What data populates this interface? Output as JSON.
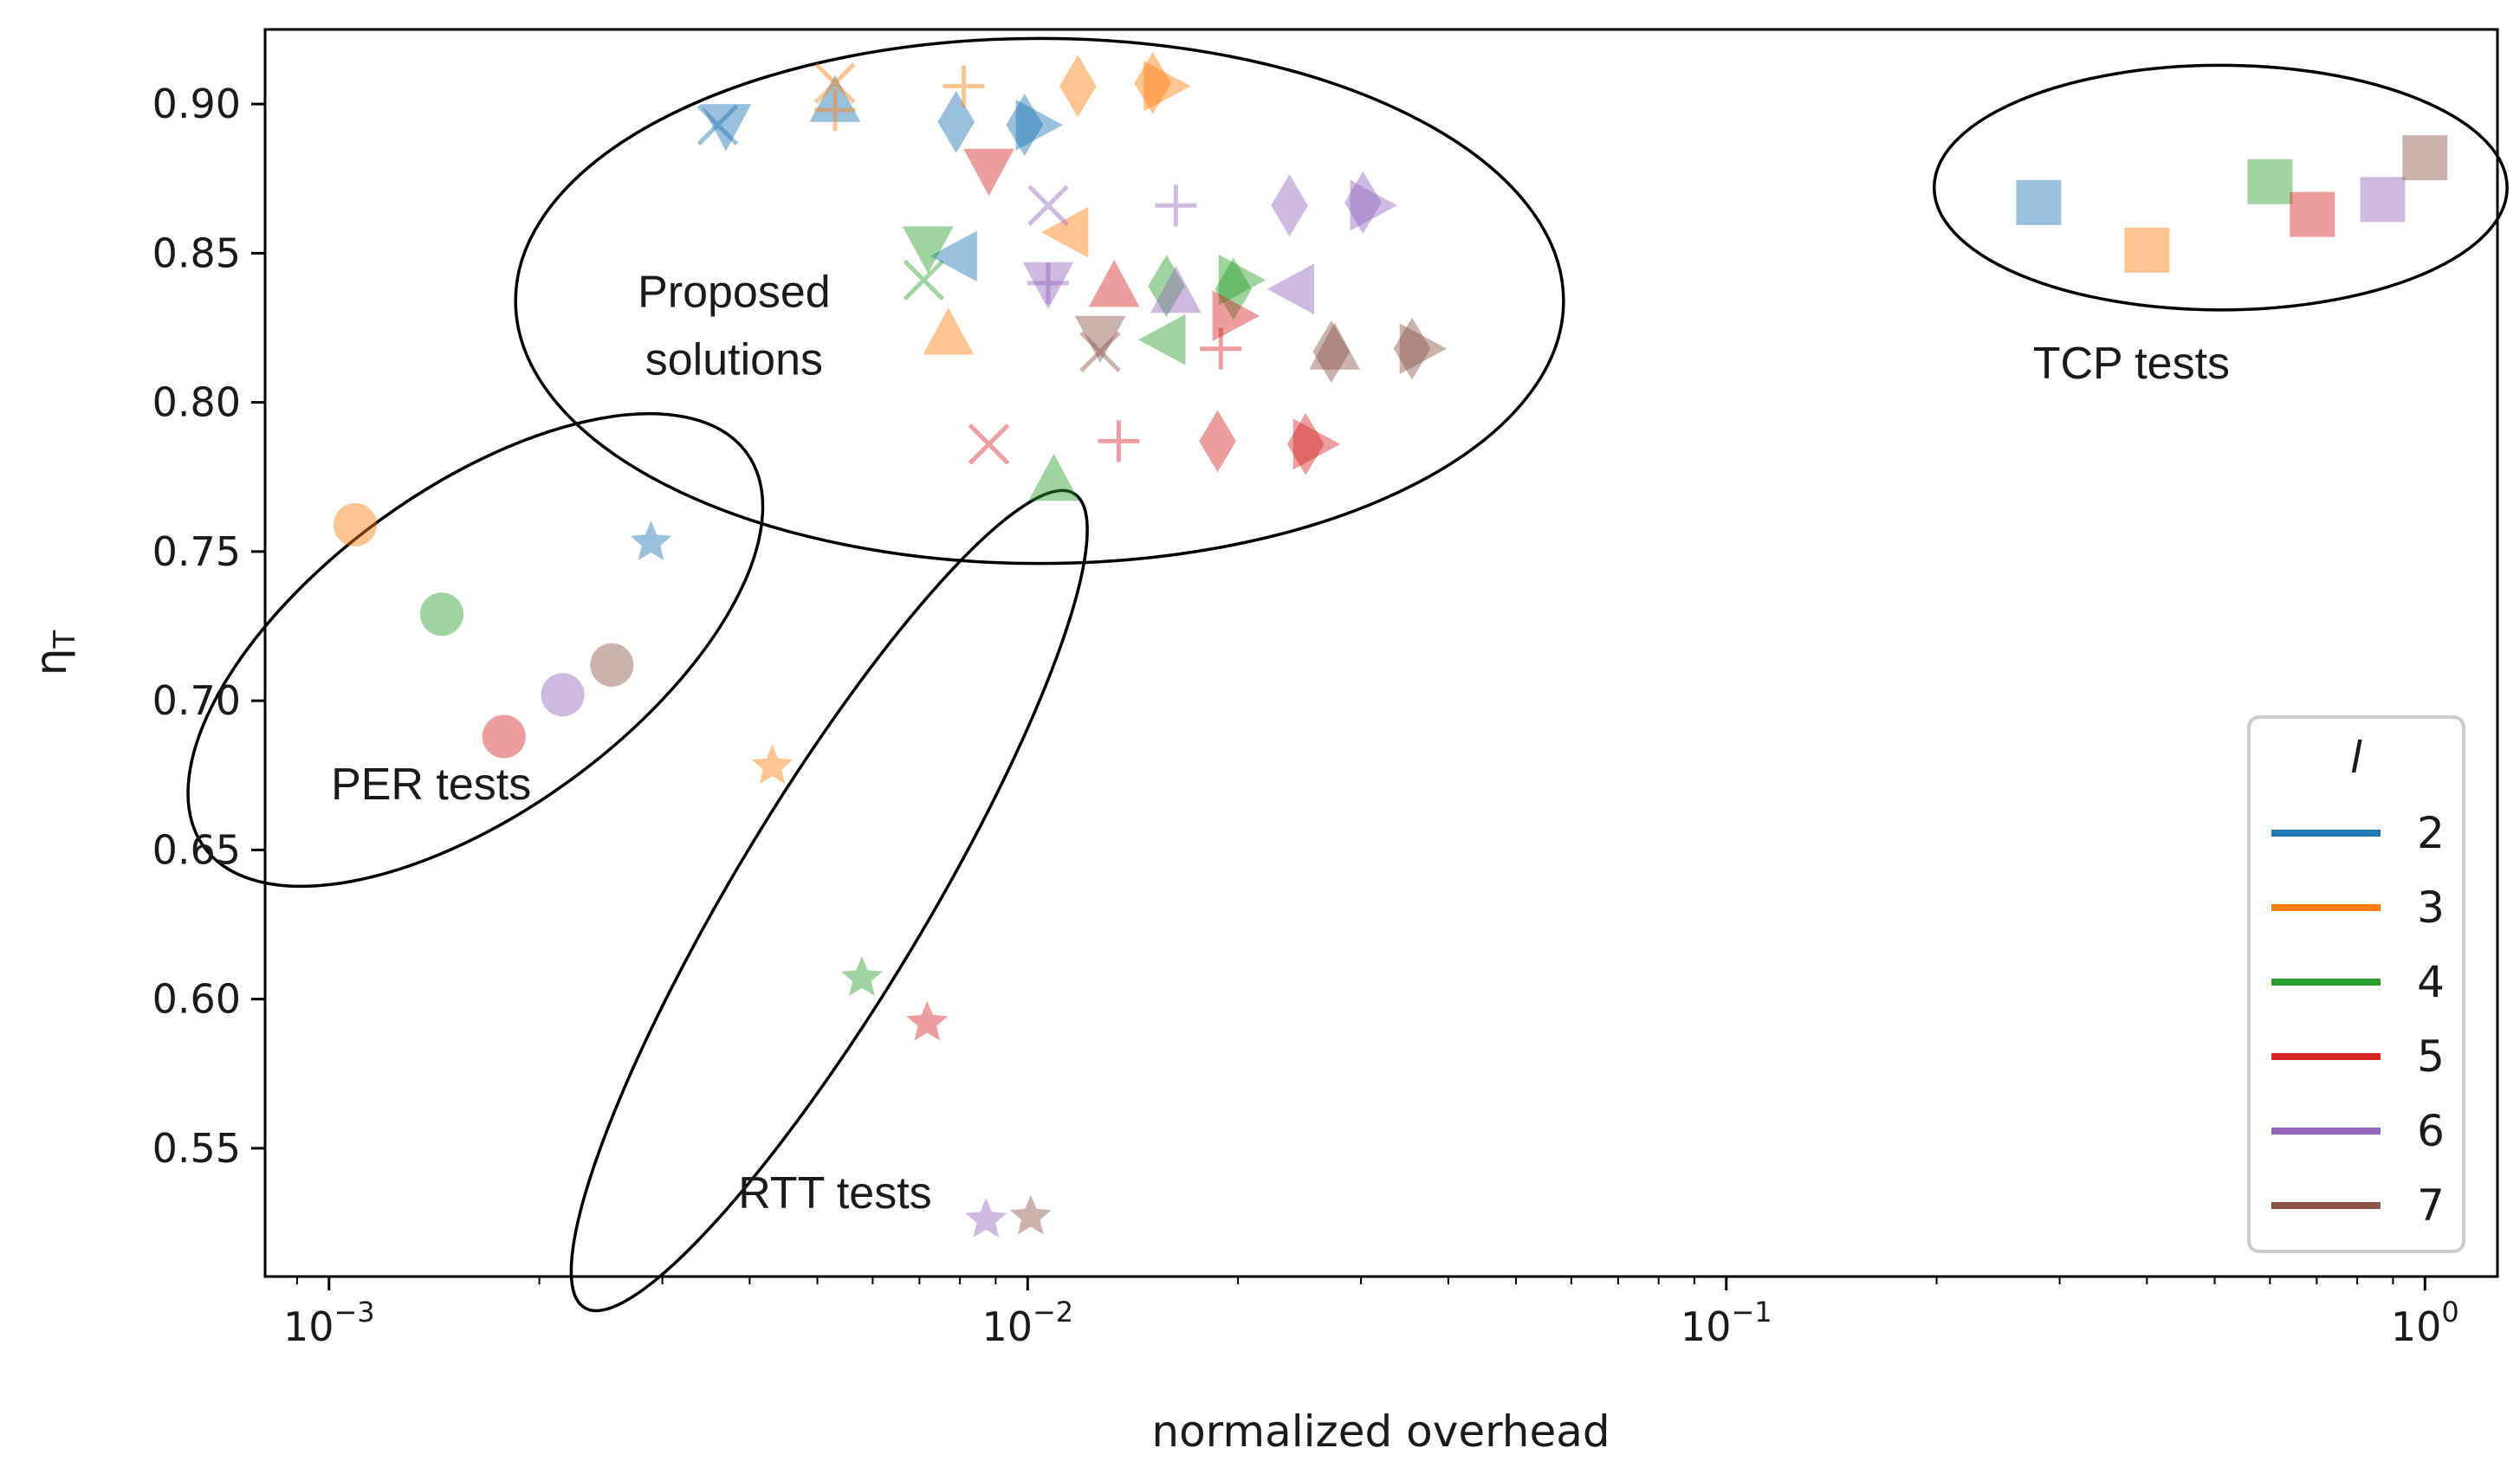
{
  "chart_data": {
    "type": "scatter",
    "title": "",
    "xlabel": "normalized overhead",
    "ylabel": "η",
    "ylabel_subscript": "T",
    "xscale": "log",
    "xlim": [
      0.00081,
      1.27
    ],
    "ylim": [
      0.507,
      0.925
    ],
    "xticks": [
      {
        "value": 0.001,
        "base": "10",
        "exp": "−3"
      },
      {
        "value": 0.01,
        "base": "10",
        "exp": "−2"
      },
      {
        "value": 0.1,
        "base": "10",
        "exp": "−1"
      },
      {
        "value": 1,
        "base": "10",
        "exp": "0"
      }
    ],
    "yticks": [
      0.55,
      0.6,
      0.65,
      0.7,
      0.75,
      0.8,
      0.85,
      0.9
    ],
    "ytick_labels": [
      "0.55",
      "0.60",
      "0.65",
      "0.70",
      "0.75",
      "0.80",
      "0.85",
      "0.90"
    ],
    "legend": {
      "title": "l",
      "placement": "lower-right",
      "entries": [
        {
          "label": "2",
          "color": "#1f77b4"
        },
        {
          "label": "3",
          "color": "#ff7f0e"
        },
        {
          "label": "4",
          "color": "#2ca02c"
        },
        {
          "label": "5",
          "color": "#d62728"
        },
        {
          "label": "6",
          "color": "#9467bd"
        },
        {
          "label": "7",
          "color": "#8c564b"
        }
      ]
    },
    "annotations": [
      {
        "text_lines": [
          "Proposed",
          "solutions"
        ],
        "x": 0.0038,
        "y": 0.832
      },
      {
        "text_lines": [
          "TCP tests"
        ],
        "x": 0.38,
        "y": 0.808
      },
      {
        "text_lines": [
          "PER tests"
        ],
        "x": 0.0014,
        "y": 0.667
      },
      {
        "text_lines": [
          "RTT tests"
        ],
        "x": 0.0053,
        "y": 0.53
      }
    ],
    "groups": [
      {
        "name": "TCP tests",
        "marker": "square",
        "points": [
          {
            "l": 2,
            "x": 0.28,
            "y": 0.867
          },
          {
            "l": 3,
            "x": 0.4,
            "y": 0.851
          },
          {
            "l": 4,
            "x": 0.6,
            "y": 0.874
          },
          {
            "l": 5,
            "x": 0.69,
            "y": 0.863
          },
          {
            "l": 6,
            "x": 0.87,
            "y": 0.868
          },
          {
            "l": 7,
            "x": 1.0,
            "y": 0.882
          }
        ]
      },
      {
        "name": "PER tests",
        "marker": "circle",
        "points": [
          {
            "l": 3,
            "x": 0.00109,
            "y": 0.759
          },
          {
            "l": 4,
            "x": 0.00145,
            "y": 0.729
          },
          {
            "l": 5,
            "x": 0.00178,
            "y": 0.688
          },
          {
            "l": 6,
            "x": 0.00216,
            "y": 0.702
          },
          {
            "l": 7,
            "x": 0.00254,
            "y": 0.712
          }
        ]
      },
      {
        "name": "RTT tests",
        "marker": "star",
        "points": [
          {
            "l": 2,
            "x": 0.00289,
            "y": 0.753
          },
          {
            "l": 3,
            "x": 0.00431,
            "y": 0.678
          },
          {
            "l": 4,
            "x": 0.00579,
            "y": 0.607
          },
          {
            "l": 5,
            "x": 0.00718,
            "y": 0.592
          },
          {
            "l": 6,
            "x": 0.00872,
            "y": 0.526
          },
          {
            "l": 7,
            "x": 0.0101,
            "y": 0.527
          }
        ]
      },
      {
        "name": "Proposed solutions",
        "marker": "mixed",
        "points": [
          {
            "l": 2,
            "marker": "triangle_down",
            "x": 0.0037,
            "y": 0.893
          },
          {
            "l": 2,
            "marker": "x",
            "x": 0.0036,
            "y": 0.893
          },
          {
            "l": 2,
            "marker": "triangle_up",
            "x": 0.0053,
            "y": 0.901
          },
          {
            "l": 2,
            "marker": "diamond",
            "x": 0.0079,
            "y": 0.894
          },
          {
            "l": 2,
            "marker": "triangle_right",
            "x": 0.0103,
            "y": 0.893
          },
          {
            "l": 2,
            "marker": "diamond",
            "x": 0.0099,
            "y": 0.893
          },
          {
            "l": 2,
            "marker": "triangle_left",
            "x": 0.0079,
            "y": 0.849
          },
          {
            "l": 3,
            "marker": "x",
            "x": 0.0053,
            "y": 0.907
          },
          {
            "l": 3,
            "marker": "plus",
            "x": 0.0053,
            "y": 0.898
          },
          {
            "l": 3,
            "marker": "plus",
            "x": 0.0081,
            "y": 0.906
          },
          {
            "l": 3,
            "marker": "diamond",
            "x": 0.0118,
            "y": 0.906
          },
          {
            "l": 3,
            "marker": "diamond",
            "x": 0.0151,
            "y": 0.907
          },
          {
            "l": 3,
            "marker": "triangle_right",
            "x": 0.0157,
            "y": 0.906
          },
          {
            "l": 3,
            "marker": "triangle_left",
            "x": 0.0114,
            "y": 0.857
          },
          {
            "l": 3,
            "marker": "triangle_up",
            "x": 0.0077,
            "y": 0.823
          },
          {
            "l": 4,
            "marker": "triangle_down",
            "x": 0.0072,
            "y": 0.852
          },
          {
            "l": 4,
            "marker": "x",
            "x": 0.0071,
            "y": 0.841
          },
          {
            "l": 4,
            "marker": "diamond",
            "x": 0.0158,
            "y": 0.839
          },
          {
            "l": 4,
            "marker": "triangle_right",
            "x": 0.0201,
            "y": 0.841
          },
          {
            "l": 4,
            "marker": "diamond",
            "x": 0.0197,
            "y": 0.838
          },
          {
            "l": 4,
            "marker": "triangle_left",
            "x": 0.0157,
            "y": 0.821
          },
          {
            "l": 4,
            "marker": "triangle_up",
            "x": 0.0109,
            "y": 0.774
          },
          {
            "l": 5,
            "marker": "triangle_down",
            "x": 0.0088,
            "y": 0.878
          },
          {
            "l": 5,
            "marker": "triangle_up",
            "x": 0.0133,
            "y": 0.839
          },
          {
            "l": 5,
            "marker": "triangle_right",
            "x": 0.0197,
            "y": 0.829
          },
          {
            "l": 5,
            "marker": "plus",
            "x": 0.0189,
            "y": 0.818
          },
          {
            "l": 5,
            "marker": "x",
            "x": 0.0088,
            "y": 0.786
          },
          {
            "l": 5,
            "marker": "plus",
            "x": 0.0135,
            "y": 0.787
          },
          {
            "l": 5,
            "marker": "diamond",
            "x": 0.0187,
            "y": 0.787
          },
          {
            "l": 5,
            "marker": "diamond",
            "x": 0.025,
            "y": 0.786
          },
          {
            "l": 5,
            "marker": "triangle_right",
            "x": 0.0257,
            "y": 0.786
          },
          {
            "l": 6,
            "marker": "x",
            "x": 0.0107,
            "y": 0.866
          },
          {
            "l": 6,
            "marker": "plus",
            "x": 0.0163,
            "y": 0.866
          },
          {
            "l": 6,
            "marker": "diamond",
            "x": 0.0237,
            "y": 0.866
          },
          {
            "l": 6,
            "marker": "diamond",
            "x": 0.0302,
            "y": 0.867
          },
          {
            "l": 6,
            "marker": "triangle_right",
            "x": 0.031,
            "y": 0.866
          },
          {
            "l": 6,
            "marker": "triangle_down",
            "x": 0.0107,
            "y": 0.84
          },
          {
            "l": 6,
            "marker": "plus",
            "x": 0.0107,
            "y": 0.84
          },
          {
            "l": 6,
            "marker": "triangle_up",
            "x": 0.0163,
            "y": 0.837
          },
          {
            "l": 6,
            "marker": "triangle_left",
            "x": 0.024,
            "y": 0.838
          },
          {
            "l": 7,
            "marker": "triangle_down",
            "x": 0.0127,
            "y": 0.822
          },
          {
            "l": 7,
            "marker": "x",
            "x": 0.0127,
            "y": 0.817
          },
          {
            "l": 7,
            "marker": "triangle_up",
            "x": 0.0275,
            "y": 0.818
          },
          {
            "l": 7,
            "marker": "diamond",
            "x": 0.0272,
            "y": 0.817
          },
          {
            "l": 7,
            "marker": "diamond",
            "x": 0.0355,
            "y": 0.818
          },
          {
            "l": 7,
            "marker": "triangle_right",
            "x": 0.0365,
            "y": 0.818
          }
        ]
      }
    ],
    "ellipses": [
      {
        "name": "proposed-solutions-ellipse",
        "cx": 0.0104,
        "cy": 0.834,
        "rx_decades": 0.75,
        "ry_data": 0.088,
        "angle": 0
      },
      {
        "name": "tcp-tests-ellipse",
        "cx": 0.51,
        "cy": 0.872,
        "rx_decades": 0.41,
        "ry_data": 0.041,
        "angle": 0
      },
      {
        "name": "per-tests-ellipse",
        "cx": 0.00162,
        "cy": 0.717,
        "rx_decades": 0.48,
        "ry_data": 0.054,
        "angle": -36
      },
      {
        "name": "rtt-tests-ellipse",
        "cx": 0.0052,
        "cy": 0.633,
        "rx_decades": 0.68,
        "ry_data": 0.032,
        "angle": -59
      }
    ]
  }
}
